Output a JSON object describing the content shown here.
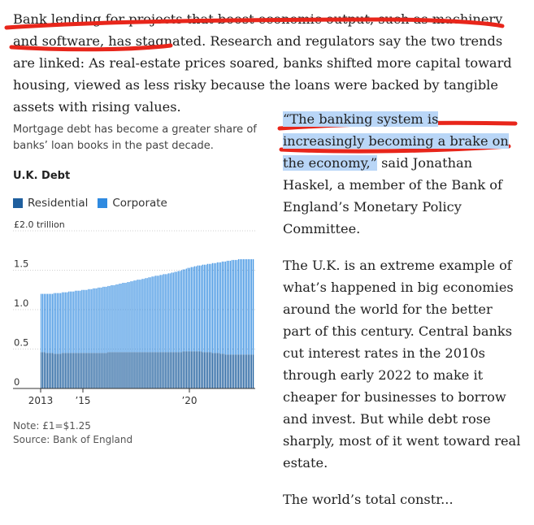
{
  "article": {
    "intro_part1": "Bank lending for projects that boost economic output, such as machinery and software, has stagnated.",
    "intro_part2": " Research and regulators say the two trends are linked: As real-estate prices soared, banks shifted more capital toward housing, viewed as less risky because the loans were backed by tangible assets with rising values.",
    "quote": "“The banking system is increasingly becoming a brake on the economy,”",
    "quote_attribution": " said Jonathan Haskel, a member of the Bank of England’s Monetary Policy Committee.",
    "para2": "The U.K. is an extreme example of what’s happened in big economies around the world for the better part of this century. Central banks cut interest rates in the 2010s through early 2022 to make it cheaper for businesses to borrow and invest. But while debt rose sharply, most of it went toward real estate.",
    "para3_partial": "The world’s total constr..."
  },
  "chart": {
    "subtitle": "Mortgage debt has become a greater share of banks’ loan books in the past decade.",
    "title": "U.K. Debt",
    "legend": [
      {
        "label": "Residential",
        "color": "#1f5f9e"
      },
      {
        "label": "Corporate",
        "color": "#2f8ae0"
      }
    ],
    "note": "Note: £1=$1.25",
    "source": "Source: Bank of England"
  },
  "colors": {
    "residential": "#1f5f9e",
    "corporate": "#2f8ae0",
    "annotation_red": "#e8261b",
    "highlight": "#b9d6f7"
  },
  "chart_data": {
    "type": "bar",
    "stacked": true,
    "title": "U.K. Debt",
    "ylabel": "",
    "y_unit": "£ trillion",
    "ylim": [
      0,
      2.0
    ],
    "y_ticks": [
      "£2.0 trillion",
      "1.5",
      "1.0",
      "0.5",
      "0"
    ],
    "y_tick_values": [
      2.0,
      1.5,
      1.0,
      0.5,
      0
    ],
    "x_ticks": [
      "2013",
      "’15",
      "’20"
    ],
    "x_range": [
      "2013",
      "2024"
    ],
    "series": [
      {
        "name": "Residential",
        "values_desc": "bottom",
        "start": 0.46,
        "end": 0.43
      },
      {
        "name": "Corporate",
        "values_desc": "top",
        "start": 0.74,
        "end": 1.21
      }
    ],
    "residential": [
      0.46,
      0.46,
      0.46,
      0.45,
      0.45,
      0.45,
      0.45,
      0.45,
      0.44,
      0.44,
      0.44,
      0.44,
      0.44,
      0.45,
      0.45,
      0.45,
      0.45,
      0.45,
      0.45,
      0.45,
      0.45,
      0.45,
      0.45,
      0.45,
      0.45,
      0.45,
      0.45,
      0.45,
      0.45,
      0.45,
      0.45,
      0.45,
      0.45,
      0.45,
      0.45,
      0.45,
      0.45,
      0.45,
      0.45,
      0.45,
      0.45,
      0.46,
      0.46,
      0.46,
      0.46,
      0.46,
      0.46,
      0.46,
      0.46,
      0.46,
      0.46,
      0.46,
      0.46,
      0.46,
      0.46,
      0.46,
      0.46,
      0.46,
      0.46,
      0.46,
      0.46,
      0.46,
      0.46,
      0.46,
      0.46,
      0.46,
      0.46,
      0.46,
      0.46,
      0.46,
      0.46,
      0.46,
      0.46,
      0.46,
      0.46,
      0.46,
      0.46,
      0.46,
      0.46,
      0.46,
      0.46,
      0.46,
      0.46,
      0.46,
      0.46,
      0.46,
      0.46,
      0.47,
      0.47,
      0.47,
      0.47,
      0.47,
      0.47,
      0.47,
      0.47,
      0.47,
      0.47,
      0.47,
      0.47,
      0.46,
      0.46,
      0.46,
      0.46,
      0.46,
      0.46,
      0.45,
      0.45,
      0.45,
      0.45,
      0.45,
      0.44,
      0.44,
      0.44,
      0.43,
      0.43,
      0.43,
      0.43,
      0.43,
      0.43,
      0.43,
      0.43,
      0.43,
      0.43,
      0.43,
      0.43,
      0.43,
      0.43,
      0.43,
      0.43,
      0.43,
      0.43
    ],
    "total": [
      1.2,
      1.2,
      1.2,
      1.2,
      1.2,
      1.2,
      1.2,
      1.2,
      1.21,
      1.21,
      1.21,
      1.21,
      1.21,
      1.22,
      1.22,
      1.22,
      1.22,
      1.23,
      1.23,
      1.23,
      1.23,
      1.24,
      1.24,
      1.24,
      1.24,
      1.25,
      1.25,
      1.25,
      1.25,
      1.26,
      1.26,
      1.26,
      1.27,
      1.27,
      1.27,
      1.28,
      1.28,
      1.28,
      1.29,
      1.29,
      1.29,
      1.3,
      1.3,
      1.31,
      1.31,
      1.31,
      1.32,
      1.32,
      1.33,
      1.33,
      1.34,
      1.34,
      1.34,
      1.35,
      1.35,
      1.36,
      1.36,
      1.37,
      1.37,
      1.38,
      1.38,
      1.38,
      1.39,
      1.39,
      1.4,
      1.4,
      1.41,
      1.41,
      1.42,
      1.42,
      1.43,
      1.43,
      1.43,
      1.44,
      1.44,
      1.45,
      1.45,
      1.45,
      1.46,
      1.46,
      1.47,
      1.47,
      1.48,
      1.48,
      1.49,
      1.49,
      1.5,
      1.51,
      1.51,
      1.52,
      1.53,
      1.53,
      1.54,
      1.54,
      1.55,
      1.55,
      1.56,
      1.56,
      1.56,
      1.57,
      1.57,
      1.57,
      1.58,
      1.58,
      1.58,
      1.59,
      1.59,
      1.59,
      1.6,
      1.6,
      1.6,
      1.61,
      1.61,
      1.61,
      1.62,
      1.62,
      1.62,
      1.63,
      1.63,
      1.63,
      1.63,
      1.64,
      1.64,
      1.64,
      1.64,
      1.64,
      1.64,
      1.64,
      1.64,
      1.64,
      1.64
    ]
  }
}
